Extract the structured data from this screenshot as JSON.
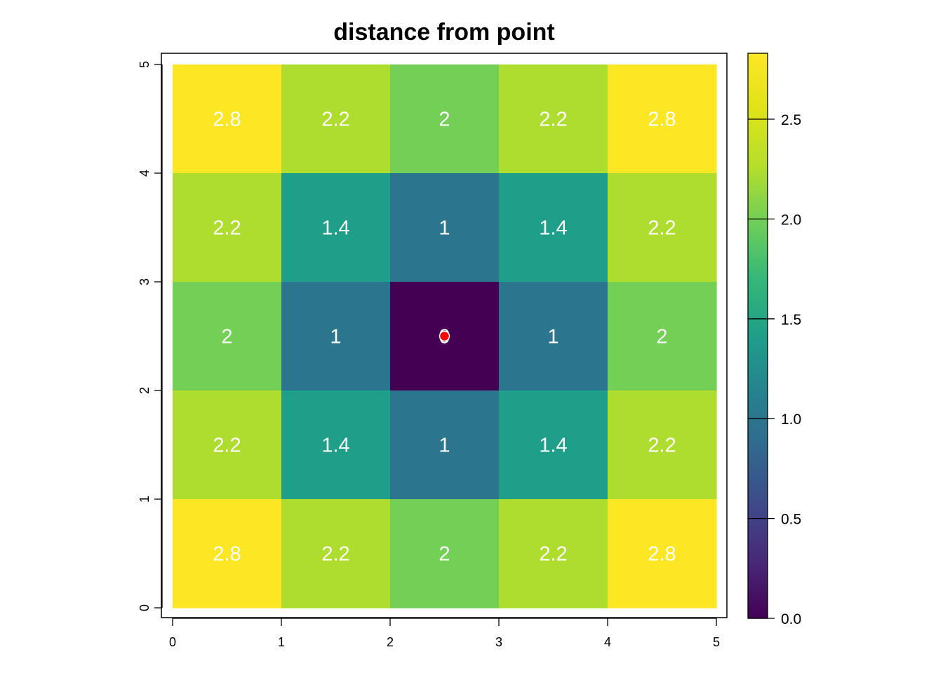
{
  "chart_data": {
    "type": "heatmap",
    "title": "distance from point",
    "xlabel": "",
    "ylabel": "",
    "xlim": [
      0,
      5
    ],
    "ylim": [
      0,
      5
    ],
    "x_ticks": [
      "0",
      "1",
      "2",
      "3",
      "4",
      "5"
    ],
    "y_ticks": [
      "0",
      "1",
      "2",
      "3",
      "4",
      "5"
    ],
    "rows_top_to_bottom": [
      [
        2.83,
        2.24,
        2.0,
        2.24,
        2.83
      ],
      [
        2.24,
        1.41,
        1.0,
        1.41,
        2.24
      ],
      [
        2.0,
        1.0,
        0.0,
        1.0,
        2.0
      ],
      [
        2.24,
        1.41,
        1.0,
        1.41,
        2.24
      ],
      [
        2.83,
        2.24,
        2.0,
        2.24,
        2.83
      ]
    ],
    "cell_labels_top_to_bottom": [
      [
        "2.8",
        "2.2",
        "2",
        "2.2",
        "2.8"
      ],
      [
        "2.2",
        "1.4",
        "1",
        "1.4",
        "2.2"
      ],
      [
        "2",
        "1",
        "0",
        "1",
        "2"
      ],
      [
        "2.2",
        "1.4",
        "1",
        "1.4",
        "2.2"
      ],
      [
        "2.8",
        "2.2",
        "2",
        "2.2",
        "2.8"
      ]
    ],
    "point": {
      "x": 2.5,
      "y": 2.5,
      "color": "#ff0000"
    },
    "colorbar": {
      "min": 0.0,
      "max": 2.83,
      "ticks": [
        0.0,
        0.5,
        1.0,
        1.5,
        2.0,
        2.5
      ],
      "tick_labels": [
        "0.0",
        "0.5",
        "1.0",
        "1.5",
        "2.0",
        "2.5"
      ],
      "colormap": "viridis"
    },
    "grid": false,
    "legend": "colorbar-right"
  },
  "colors": {
    "label_text": "#ffffff",
    "axis": "#000000",
    "background": "#ffffff"
  }
}
